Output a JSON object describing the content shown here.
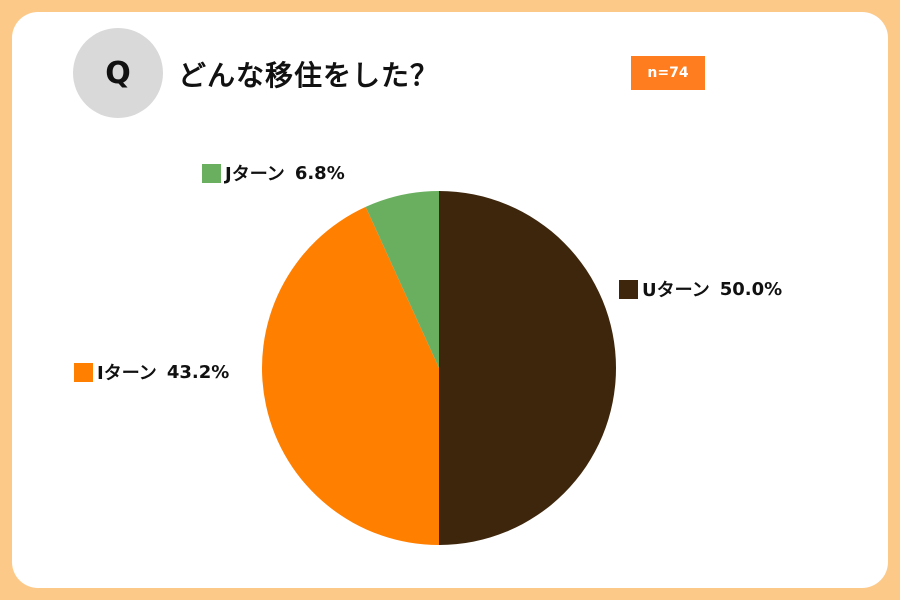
{
  "question_badge": "Q",
  "title": "どんな移住をした？",
  "sample_size": "n=74",
  "chart_data": {
    "type": "pie",
    "start_angle_deg": 0,
    "direction": "clockwise",
    "slices": [
      {
        "label": "Uターン",
        "value": 50.0,
        "display": "50.0%",
        "color": "#3d260c"
      },
      {
        "label": "Iターン",
        "value": 43.2,
        "display": "43.2%",
        "color": "#ff7f00"
      },
      {
        "label": "Jターン",
        "value": 6.8,
        "display": "6.8%",
        "color": "#6aaf5f"
      }
    ]
  }
}
